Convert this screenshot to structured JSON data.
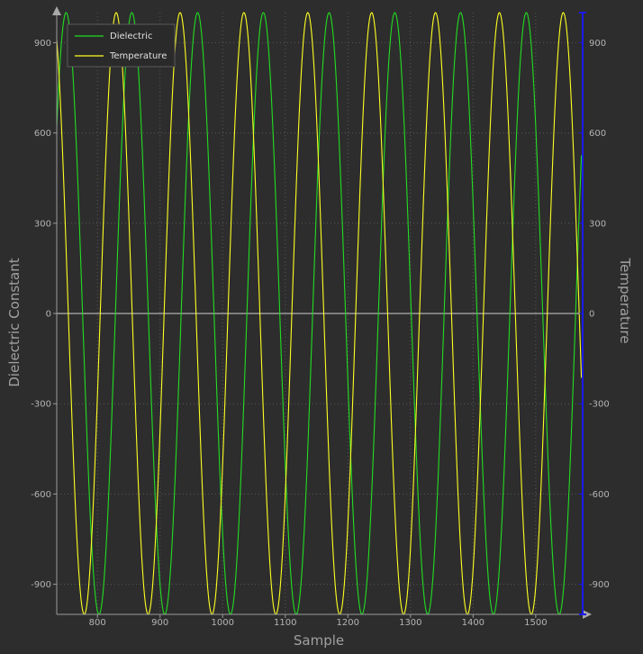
{
  "chart_data": {
    "type": "line",
    "xlabel": "Sample",
    "ylabel": "Dielectric Constant",
    "y2label": "Temperature",
    "xlim": [
      735,
      1575
    ],
    "ylim": [
      -1000,
      1000
    ],
    "y2lim": [
      -1000,
      1000
    ],
    "x_ticks": [
      800,
      900,
      1000,
      1100,
      1200,
      1300,
      1400,
      1500
    ],
    "y_ticks": [
      -900,
      -600,
      -300,
      0,
      300,
      600,
      900
    ],
    "y2_ticks": [
      -900,
      -600,
      -300,
      0,
      300,
      600,
      900
    ],
    "grid": true,
    "legend_position": "top-left",
    "series": [
      {
        "name": "Dielectric",
        "color": "#22dd22",
        "axis": "left",
        "amplitude": 1000,
        "period": 105,
        "peak_at": 750,
        "x_range": [
          735,
          1573
        ]
      },
      {
        "name": "Temperature",
        "color": "#ffff22",
        "axis": "right",
        "amplitude": 1000,
        "period": 102,
        "peak_at": 728,
        "x_range": [
          735,
          1573
        ]
      }
    ]
  }
}
